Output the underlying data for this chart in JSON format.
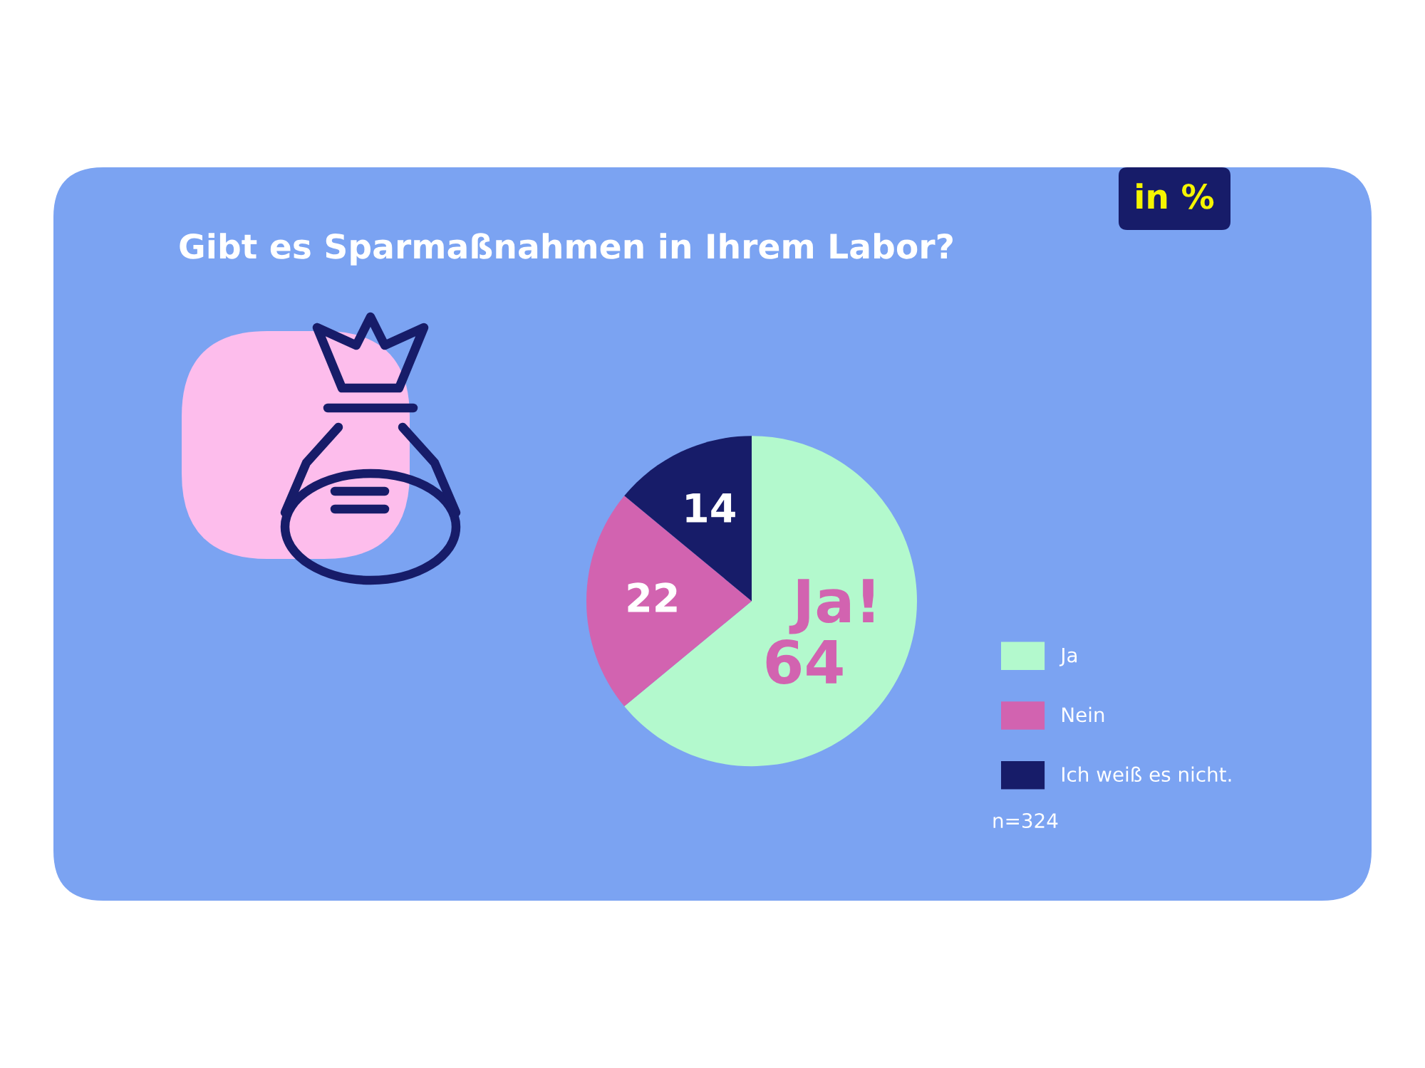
{
  "chart_data": {
    "type": "pie",
    "title": "Gibt es Sparmaßnahmen in Ihrem Labor?",
    "categories": [
      "Ja",
      "Nein",
      "Ich weiß es nicht."
    ],
    "values": [
      64,
      22,
      14
    ],
    "colors": [
      "#b3f9cd",
      "#d263b0",
      "#171c69"
    ],
    "data_labels": true,
    "legend": "right",
    "annotations": [
      "in %",
      "Ja!",
      "n=324"
    ]
  }
}
